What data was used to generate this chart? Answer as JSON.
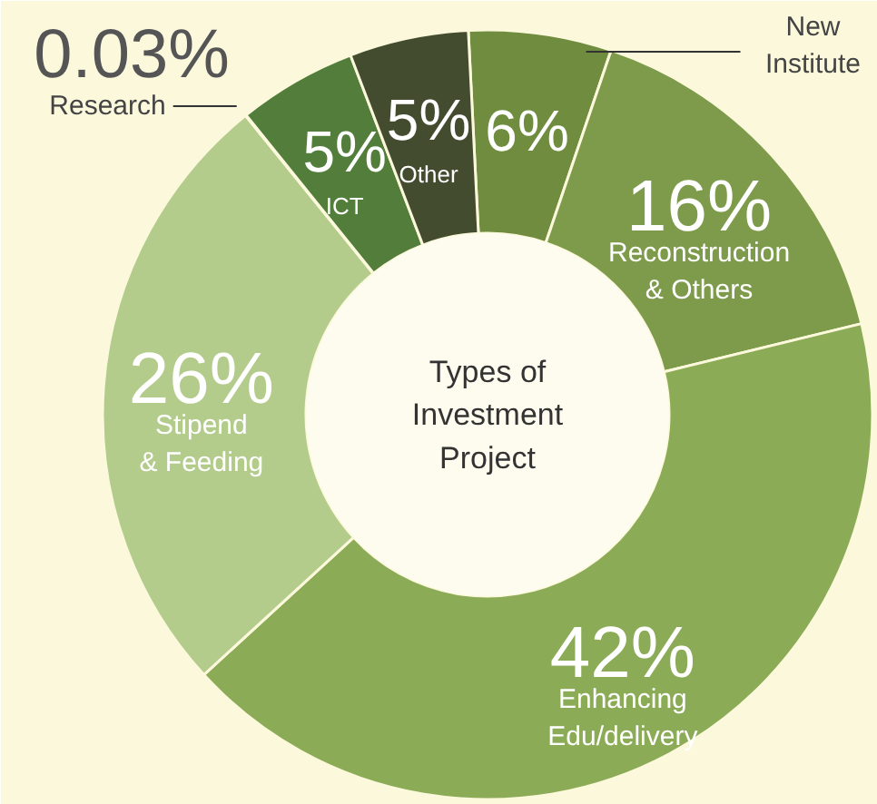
{
  "chart_data": {
    "type": "donut",
    "title": "Types of Investment Project",
    "categories": [
      "New Institute",
      "Reconstruction & Others",
      "Enhancing Edu/delivery",
      "Stipend & Feeding",
      "Research",
      "ICT",
      "Other"
    ],
    "values": [
      6,
      16,
      42,
      26,
      0.03,
      5,
      5
    ],
    "colors": [
      "#6f8c3f",
      "#7d9b4b",
      "#8bab56",
      "#b3cc8c",
      "#6a8a42",
      "#527d3a",
      "#434c2e"
    ],
    "value_labels": [
      "6%",
      "16%",
      "42%",
      "26%",
      "0.03%",
      "5%",
      "5%"
    ]
  }
}
